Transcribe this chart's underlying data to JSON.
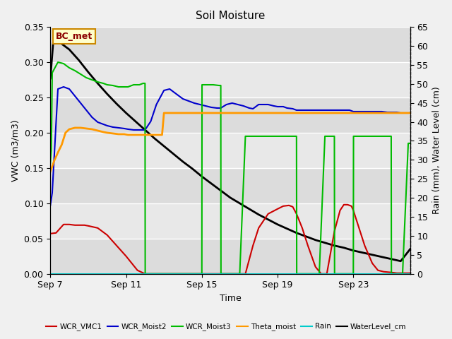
{
  "title": "Soil Moisture",
  "xlabel": "Time",
  "ylabel_left": "VWC (m3/m3)",
  "ylabel_right": "Rain (mm), Water Level (cm)",
  "ylim_left": [
    0.0,
    0.35
  ],
  "ylim_right": [
    0,
    65
  ],
  "yticks_left": [
    0.0,
    0.05,
    0.1,
    0.15,
    0.2,
    0.25,
    0.3,
    0.35
  ],
  "yticks_right": [
    0,
    5,
    10,
    15,
    20,
    25,
    30,
    35,
    40,
    45,
    50,
    55,
    60,
    65
  ],
  "xtick_labels": [
    "Sep 7",
    "Sep 11",
    "Sep 15",
    "Sep 19",
    "Sep 23"
  ],
  "xtick_positions": [
    0,
    4,
    8,
    12,
    16
  ],
  "xlim": [
    0,
    19
  ],
  "station_label": "BC_met",
  "plot_bg_bands": [
    {
      "ymin": 0.0,
      "ymax": 0.05,
      "color": "#e0e0e0"
    },
    {
      "ymin": 0.05,
      "ymax": 0.1,
      "color": "#ebebeb"
    },
    {
      "ymin": 0.1,
      "ymax": 0.15,
      "color": "#e0e0e0"
    },
    {
      "ymin": 0.15,
      "ymax": 0.2,
      "color": "#ebebeb"
    },
    {
      "ymin": 0.2,
      "ymax": 0.25,
      "color": "#e0e0e0"
    },
    {
      "ymin": 0.25,
      "ymax": 0.3,
      "color": "#ebebeb"
    },
    {
      "ymin": 0.3,
      "ymax": 0.35,
      "color": "#e0e0e0"
    }
  ],
  "series": {
    "WCR_VMC1": {
      "color": "#cc0000",
      "lw": 1.5,
      "x": [
        0.0,
        0.3,
        0.7,
        1.0,
        1.3,
        1.8,
        2.0,
        2.5,
        3.0,
        3.5,
        4.0,
        4.3,
        4.6,
        5.0,
        5.5,
        6.0,
        6.5,
        7.0,
        7.5,
        8.0,
        8.5,
        9.0,
        9.5,
        10.0,
        10.3,
        10.7,
        11.0,
        11.5,
        12.0,
        12.3,
        12.6,
        12.8,
        13.0,
        13.3,
        13.6,
        14.0,
        14.3,
        14.6,
        15.0,
        15.3,
        15.5,
        15.7,
        15.9,
        16.0,
        16.3,
        16.6,
        17.0,
        17.3,
        17.6,
        18.0,
        18.3,
        18.6,
        19.0
      ],
      "y": [
        0.057,
        0.058,
        0.07,
        0.07,
        0.069,
        0.069,
        0.068,
        0.065,
        0.055,
        0.04,
        0.025,
        0.015,
        0.005,
        0.0,
        0.0,
        0.0,
        0.0,
        0.0,
        0.0,
        0.0,
        0.0,
        0.0,
        0.0,
        0.0,
        0.0,
        0.04,
        0.065,
        0.085,
        0.092,
        0.096,
        0.097,
        0.095,
        0.085,
        0.065,
        0.04,
        0.01,
        0.0,
        0.0,
        0.06,
        0.09,
        0.098,
        0.098,
        0.096,
        0.09,
        0.065,
        0.04,
        0.015,
        0.005,
        0.003,
        0.002,
        0.001,
        0.001,
        0.001
      ]
    },
    "WCR_Moist2": {
      "color": "#0000cc",
      "lw": 1.5,
      "x": [
        0.0,
        0.1,
        0.4,
        0.7,
        1.0,
        1.3,
        1.6,
        1.9,
        2.2,
        2.5,
        2.8,
        3.0,
        3.3,
        3.6,
        3.9,
        4.1,
        4.4,
        4.7,
        5.0,
        5.3,
        5.6,
        6.0,
        6.3,
        6.5,
        6.8,
        7.0,
        7.3,
        7.6,
        7.9,
        8.2,
        8.5,
        8.8,
        9.0,
        9.3,
        9.6,
        9.9,
        10.2,
        10.5,
        10.7,
        11.0,
        11.3,
        11.5,
        11.8,
        12.0,
        12.3,
        12.5,
        12.8,
        13.0,
        13.3,
        13.5,
        13.8,
        14.0,
        14.3,
        14.5,
        14.8,
        15.0,
        15.3,
        15.5,
        15.8,
        16.0,
        16.3,
        16.5,
        16.8,
        17.0,
        17.3,
        17.5,
        17.8,
        18.0,
        18.3,
        18.5,
        18.8,
        19.0
      ],
      "y": [
        0.097,
        0.115,
        0.262,
        0.265,
        0.262,
        0.252,
        0.242,
        0.232,
        0.222,
        0.215,
        0.212,
        0.21,
        0.208,
        0.207,
        0.206,
        0.205,
        0.204,
        0.204,
        0.204,
        0.216,
        0.24,
        0.26,
        0.262,
        0.258,
        0.252,
        0.248,
        0.245,
        0.242,
        0.24,
        0.238,
        0.236,
        0.235,
        0.235,
        0.24,
        0.242,
        0.24,
        0.238,
        0.235,
        0.234,
        0.24,
        0.24,
        0.24,
        0.238,
        0.237,
        0.237,
        0.235,
        0.234,
        0.232,
        0.232,
        0.232,
        0.232,
        0.232,
        0.232,
        0.232,
        0.232,
        0.232,
        0.232,
        0.232,
        0.232,
        0.23,
        0.23,
        0.23,
        0.23,
        0.23,
        0.23,
        0.23,
        0.229,
        0.229,
        0.229,
        0.228,
        0.228,
        0.228
      ]
    },
    "WCR_Moist3": {
      "color": "#00bb00",
      "lw": 1.5,
      "x": [
        0.0,
        0.05,
        0.1,
        0.4,
        0.7,
        1.0,
        1.3,
        1.6,
        1.9,
        2.2,
        2.5,
        2.8,
        3.0,
        3.3,
        3.6,
        3.9,
        4.1,
        4.4,
        4.7,
        4.9,
        5.0,
        5.01,
        5.3,
        5.6,
        5.9,
        6.2,
        6.5,
        6.8,
        7.0,
        7.3,
        7.6,
        7.9,
        8.0,
        8.01,
        8.3,
        8.6,
        8.9,
        9.0,
        9.01,
        9.3,
        9.6,
        9.9,
        10.0,
        10.3,
        10.6,
        10.9,
        11.2,
        11.5,
        11.8,
        12.0,
        12.3,
        12.6,
        12.9,
        13.0,
        13.01,
        13.3,
        13.6,
        13.9,
        14.2,
        14.5,
        14.8,
        15.0,
        15.01,
        15.3,
        15.6,
        15.9,
        16.0,
        16.01,
        16.3,
        16.6,
        16.9,
        17.2,
        17.5,
        17.8,
        18.0,
        18.01,
        18.3,
        18.6,
        18.9,
        19.0
      ],
      "y": [
        0.157,
        0.175,
        0.285,
        0.3,
        0.298,
        0.292,
        0.288,
        0.283,
        0.278,
        0.275,
        0.272,
        0.27,
        0.268,
        0.267,
        0.265,
        0.265,
        0.265,
        0.268,
        0.268,
        0.27,
        0.27,
        0.0,
        0.0,
        0.0,
        0.0,
        0.0,
        0.0,
        0.0,
        0.0,
        0.0,
        0.0,
        0.0,
        0.0,
        0.268,
        0.268,
        0.268,
        0.267,
        0.267,
        0.0,
        0.0,
        0.0,
        0.0,
        0.0,
        0.195,
        0.195,
        0.195,
        0.195,
        0.195,
        0.195,
        0.195,
        0.195,
        0.195,
        0.195,
        0.195,
        0.0,
        0.0,
        0.0,
        0.0,
        0.0,
        0.195,
        0.195,
        0.195,
        0.0,
        0.0,
        0.0,
        0.0,
        0.0,
        0.195,
        0.195,
        0.195,
        0.195,
        0.195,
        0.195,
        0.195,
        0.195,
        0.0,
        0.0,
        0.0,
        0.185,
        0.185
      ]
    },
    "Theta_moist": {
      "color": "#ff9900",
      "lw": 2.0,
      "x": [
        0.0,
        0.2,
        0.4,
        0.6,
        0.8,
        1.0,
        1.3,
        1.6,
        1.9,
        2.2,
        2.5,
        2.8,
        3.0,
        3.3,
        3.6,
        3.9,
        4.1,
        4.4,
        4.7,
        5.0,
        5.3,
        5.6,
        5.9,
        6.0,
        6.3,
        6.5,
        7.0,
        7.5,
        8.0,
        8.5,
        9.0,
        9.5,
        10.0,
        10.5,
        11.0,
        11.5,
        12.0,
        12.5,
        13.0,
        13.5,
        14.0,
        14.5,
        15.0,
        15.5,
        16.0,
        16.5,
        17.0,
        17.5,
        18.0,
        18.5,
        19.0
      ],
      "y": [
        0.145,
        0.16,
        0.172,
        0.183,
        0.2,
        0.205,
        0.207,
        0.207,
        0.206,
        0.205,
        0.203,
        0.201,
        0.2,
        0.199,
        0.198,
        0.198,
        0.197,
        0.197,
        0.197,
        0.197,
        0.197,
        0.197,
        0.197,
        0.228,
        0.228,
        0.228,
        0.228,
        0.228,
        0.228,
        0.228,
        0.228,
        0.228,
        0.228,
        0.228,
        0.228,
        0.228,
        0.228,
        0.228,
        0.228,
        0.228,
        0.228,
        0.228,
        0.228,
        0.228,
        0.228,
        0.228,
        0.228,
        0.228,
        0.228,
        0.228,
        0.228
      ]
    },
    "Rain": {
      "color": "#00cccc",
      "lw": 1.5,
      "x": [
        0,
        19
      ],
      "y": [
        0.0,
        0.0
      ]
    },
    "WaterLevel_cm": {
      "color": "#000000",
      "lw": 2.0,
      "x": [
        0.0,
        0.15,
        0.5,
        1.0,
        1.5,
        2.0,
        2.5,
        3.0,
        3.5,
        4.0,
        4.5,
        5.0,
        5.5,
        6.0,
        6.5,
        7.0,
        7.5,
        8.0,
        8.5,
        9.0,
        9.5,
        10.0,
        10.5,
        11.0,
        11.5,
        12.0,
        12.5,
        13.0,
        13.5,
        14.0,
        14.5,
        15.0,
        15.5,
        16.0,
        16.5,
        17.0,
        17.5,
        18.0,
        18.5,
        19.0
      ],
      "y_left": [
        0.277,
        0.328,
        0.328,
        0.318,
        0.303,
        0.286,
        0.27,
        0.255,
        0.241,
        0.228,
        0.216,
        0.204,
        0.192,
        0.181,
        0.17,
        0.159,
        0.149,
        0.138,
        0.128,
        0.118,
        0.108,
        0.1,
        0.092,
        0.084,
        0.077,
        0.07,
        0.064,
        0.058,
        0.053,
        0.048,
        0.044,
        0.04,
        0.037,
        0.033,
        0.03,
        0.027,
        0.024,
        0.021,
        0.018,
        0.035
      ]
    }
  },
  "legend_entries": [
    "WCR_VMC1",
    "WCR_Moist2",
    "WCR_Moist3",
    "Theta_moist",
    "Rain",
    "WaterLevel_cm"
  ],
  "legend_colors": [
    "#cc0000",
    "#0000cc",
    "#00bb00",
    "#ff9900",
    "#00cccc",
    "#000000"
  ]
}
